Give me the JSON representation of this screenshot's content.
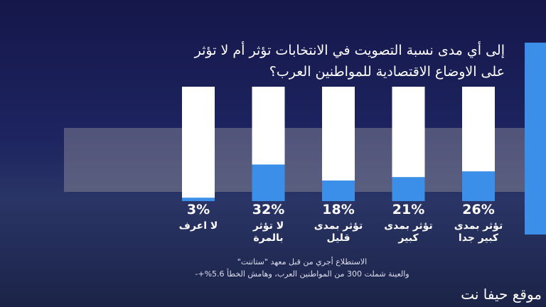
{
  "chart_data": {
    "type": "bar",
    "title": "إلى أي مدى نسبة التصويت في الانتخابات تؤثر أم لا تؤثر على الاوضاع الاقتصادية للمواطنين العرب؟",
    "categories": [
      "لا اعرف",
      "لا تؤثر بالمرة",
      "تؤثر بمدى قليل",
      "تؤثر بمدى كبير",
      "تؤثر بمدى كبير جدا"
    ],
    "values": [
      3,
      32,
      18,
      21,
      26
    ],
    "value_labels": [
      "3%",
      "32%",
      "18%",
      "21%",
      "26%"
    ],
    "color": "#3b8fe8",
    "ylim": [
      0,
      100
    ],
    "notes": [
      "الاستطلاع أجري من قبل معهد \"ستاتنت\"",
      "والعينة شملت 300 من المواطنين العرب، وهامش الخطأ 5.6%+-"
    ],
    "watermark": "موقع حيفا نت"
  }
}
